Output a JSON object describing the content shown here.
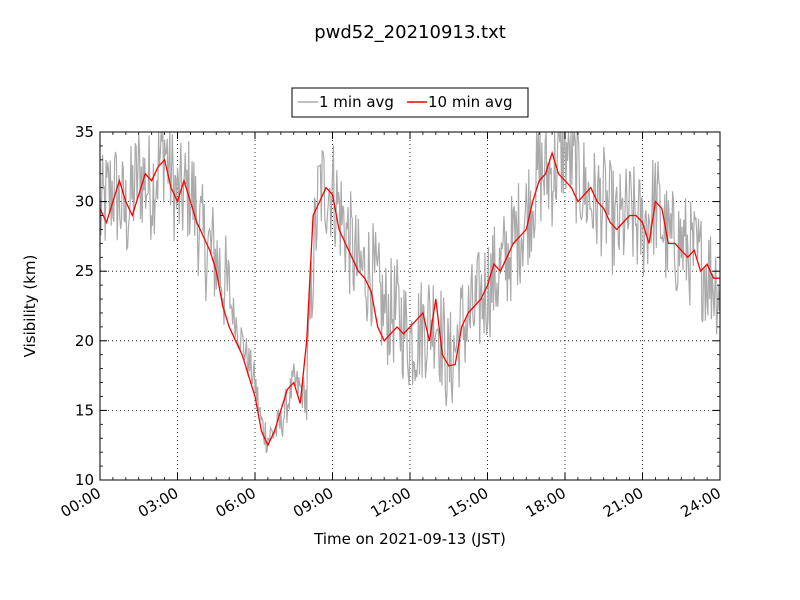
{
  "chart_data": {
    "type": "line",
    "title": "pwd52_20210913.txt",
    "xlabel": "Time on 2021-09-13 (JST)",
    "ylabel": "Visibility (km)",
    "xlim": [
      "00:00",
      "24:00"
    ],
    "ylim": [
      10,
      35
    ],
    "x_ticks": [
      "00:00",
      "03:00",
      "06:00",
      "09:00",
      "12:00",
      "15:00",
      "18:00",
      "21:00",
      "24:00"
    ],
    "y_ticks": [
      10,
      15,
      20,
      25,
      30,
      35
    ],
    "grid": true,
    "grid_style": "dotted",
    "legend_position": "top-center",
    "x_unit": "hours since 00:00",
    "series": [
      {
        "name": "1 min avg",
        "color": "#aaaaaa",
        "x": [
          0,
          0.5,
          1,
          1.5,
          2,
          2.5,
          3,
          3.5,
          4,
          4.5,
          5,
          5.5,
          6,
          6.25,
          6.5,
          7,
          7.5,
          8,
          8.25,
          8.5,
          9,
          9.5,
          10,
          10.5,
          11,
          11.5,
          12,
          12.5,
          13,
          13.5,
          14,
          14.5,
          15,
          15.5,
          16,
          16.5,
          17,
          17.5,
          18,
          18.5,
          19,
          19.5,
          20,
          20.5,
          21,
          21.5,
          22,
          22.5,
          23,
          23.5,
          24
        ],
        "y": [
          29,
          31,
          29,
          32,
          31,
          34,
          30,
          31,
          27,
          26,
          23,
          20,
          17,
          14,
          13,
          14,
          17,
          16,
          26,
          31,
          31,
          28,
          25,
          25,
          22,
          22,
          20,
          21,
          22,
          18,
          21,
          22,
          24,
          25,
          27,
          29,
          32,
          32,
          34,
          32,
          30,
          30,
          28,
          29,
          28,
          30,
          27,
          27,
          26,
          25,
          24
        ],
        "spread": 4
      },
      {
        "name": "10 min avg",
        "color": "#ff0000",
        "x": [
          0,
          0.25,
          0.5,
          0.75,
          1,
          1.25,
          1.5,
          1.75,
          2,
          2.25,
          2.5,
          2.75,
          3,
          3.25,
          3.5,
          3.75,
          4,
          4.25,
          4.5,
          4.75,
          5,
          5.25,
          5.5,
          5.75,
          6,
          6.25,
          6.5,
          6.75,
          7,
          7.25,
          7.5,
          7.75,
          8,
          8.25,
          8.5,
          8.75,
          9,
          9.25,
          9.5,
          9.75,
          10,
          10.25,
          10.5,
          10.75,
          11,
          11.25,
          11.5,
          11.75,
          12,
          12.25,
          12.5,
          12.75,
          13,
          13.25,
          13.5,
          13.75,
          14,
          14.25,
          14.5,
          14.75,
          15,
          15.25,
          15.5,
          15.75,
          16,
          16.25,
          16.5,
          16.75,
          17,
          17.25,
          17.5,
          17.75,
          18,
          18.25,
          18.5,
          18.75,
          19,
          19.25,
          19.5,
          19.75,
          20,
          20.25,
          20.5,
          20.75,
          21,
          21.25,
          21.5,
          21.75,
          22,
          22.25,
          22.5,
          22.75,
          23,
          23.25,
          23.5,
          23.75,
          24
        ],
        "y": [
          29.5,
          28.5,
          30,
          31.5,
          30,
          29,
          30.5,
          32,
          31.5,
          32.5,
          33,
          31,
          30,
          31.5,
          30,
          28.5,
          27.5,
          26.5,
          25,
          22.5,
          21,
          20,
          19,
          17.5,
          16,
          13.5,
          12.5,
          13.5,
          15,
          16.5,
          17,
          15.5,
          20,
          29,
          30,
          31,
          30.5,
          28,
          27,
          26,
          25,
          24.5,
          23.5,
          21,
          20,
          20.5,
          21,
          20.5,
          21,
          21.5,
          22,
          20,
          23,
          19,
          18.2,
          18.3,
          21,
          22,
          22.5,
          23,
          24,
          25.5,
          25,
          26,
          27,
          27.5,
          28,
          30,
          31.5,
          32,
          33.5,
          32,
          31.5,
          31,
          30,
          30.5,
          31,
          30,
          29.5,
          28.5,
          28,
          28.5,
          29,
          29,
          28.5,
          27,
          30,
          29.5,
          27,
          27,
          26.5,
          26,
          26.5,
          25,
          25.5,
          24.5,
          24.5
        ]
      }
    ]
  }
}
